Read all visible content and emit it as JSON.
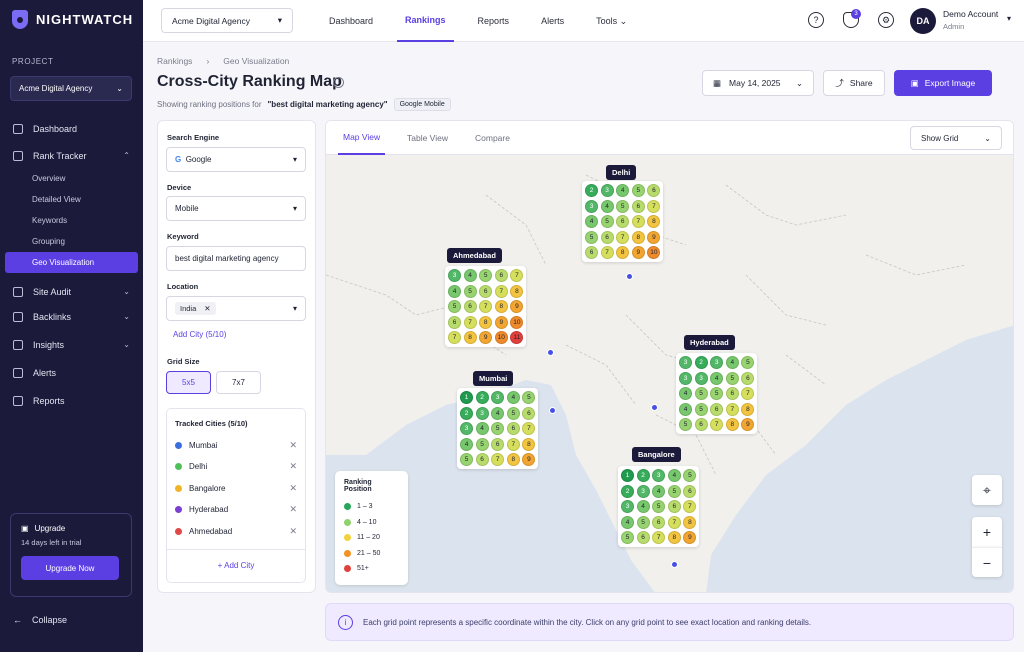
{
  "app": {
    "name": "NIGHTWATCH"
  },
  "sidebar": {
    "project_label": "PROJECT",
    "project": "Acme Digital Agency",
    "items": [
      {
        "label": "Dashboard",
        "icon": "home-icon"
      },
      {
        "label": "Rank Tracker",
        "icon": "chart-icon"
      },
      {
        "label": "Site Audit",
        "icon": "audit-icon"
      },
      {
        "label": "Backlinks",
        "icon": "link-icon"
      },
      {
        "label": "Insights",
        "icon": "insights-icon"
      },
      {
        "label": "Alerts",
        "icon": "bell-icon"
      },
      {
        "label": "Reports",
        "icon": "report-icon"
      }
    ],
    "subitems": [
      "Overview",
      "Detailed View",
      "Keywords",
      "Grouping",
      "Geo Visualization"
    ],
    "upgrade": {
      "title": "Upgrade",
      "subtitle": "14 days left in trial",
      "button": "Upgrade Now"
    },
    "collapse": "Collapse"
  },
  "topbar": {
    "agency": "Acme Digital Agency",
    "nav": [
      "Dashboard",
      "Rankings",
      "Reports",
      "Alerts",
      "Tools"
    ],
    "notifications": "3",
    "avatar": "DA",
    "account_name": "Demo Account",
    "account_role": "Admin"
  },
  "header": {
    "breadcrumb": [
      "Rankings",
      "Geo Visualization"
    ],
    "title": "Cross-City Ranking Map",
    "subtitle_prefix": "Showing ranking positions for",
    "keyword_quoted": "\"best digital marketing agency\"",
    "badge": "Google Mobile",
    "date": "May 14, 2025",
    "share": "Share",
    "export": "Export Image"
  },
  "filters": {
    "engine_label": "Search Engine",
    "engine": "Google",
    "device_label": "Device",
    "device": "Mobile",
    "keyword_label": "Keyword",
    "keyword": "best digital marketing agency",
    "location_label": "Location",
    "location": "India",
    "add_city": "Add City (5/10)",
    "grid_label": "Grid Size",
    "grid_options": [
      "5x5",
      "7x7"
    ],
    "tracked_title": "Tracked Cities (5/10)",
    "tracked": [
      {
        "name": "Mumbai",
        "color": "#3b6fe0"
      },
      {
        "name": "Delhi",
        "color": "#4fbf5a"
      },
      {
        "name": "Bangalore",
        "color": "#f0b429"
      },
      {
        "name": "Hyderabad",
        "color": "#7b3fd1"
      },
      {
        "name": "Ahmedabad",
        "color": "#e04848"
      }
    ],
    "tracked_add": "+ Add City"
  },
  "map": {
    "tabs": [
      "Map View",
      "Table View",
      "Compare"
    ],
    "show_grid": "Show Grid",
    "legend_title": "Ranking Position",
    "legend": [
      {
        "label": "1 – 3",
        "color": "#27a55a"
      },
      {
        "label": "4 – 10",
        "color": "#8fd26c"
      },
      {
        "label": "11 – 20",
        "color": "#f2d23c"
      },
      {
        "label": "21 – 50",
        "color": "#f29222"
      },
      {
        "label": "51+",
        "color": "#e0403b"
      }
    ],
    "cities": [
      {
        "name": "Delhi",
        "grid": [
          [
            2,
            3,
            4,
            5,
            6
          ],
          [
            3,
            4,
            5,
            6,
            7
          ],
          [
            4,
            5,
            6,
            7,
            8
          ],
          [
            5,
            6,
            7,
            8,
            9
          ],
          [
            6,
            7,
            8,
            9,
            10
          ]
        ]
      },
      {
        "name": "Ahmedabad",
        "grid": [
          [
            3,
            4,
            5,
            6,
            7
          ],
          [
            4,
            5,
            6,
            7,
            8
          ],
          [
            5,
            6,
            7,
            8,
            9
          ],
          [
            6,
            7,
            8,
            9,
            10
          ],
          [
            7,
            8,
            9,
            10,
            11
          ]
        ]
      },
      {
        "name": "Hyderabad",
        "grid": [
          [
            3,
            2,
            3,
            4,
            5
          ],
          [
            3,
            3,
            4,
            5,
            6
          ],
          [
            4,
            5,
            5,
            6,
            7
          ],
          [
            4,
            5,
            6,
            7,
            8
          ],
          [
            5,
            6,
            7,
            8,
            9
          ]
        ]
      },
      {
        "name": "Mumbai",
        "grid": [
          [
            1,
            2,
            3,
            4,
            5
          ],
          [
            2,
            3,
            4,
            5,
            6
          ],
          [
            3,
            4,
            5,
            6,
            7
          ],
          [
            4,
            5,
            6,
            7,
            8
          ],
          [
            5,
            6,
            7,
            8,
            9
          ]
        ]
      },
      {
        "name": "Bangalore",
        "grid": [
          [
            1,
            2,
            3,
            4,
            5
          ],
          [
            2,
            3,
            4,
            5,
            6
          ],
          [
            3,
            4,
            5,
            6,
            7
          ],
          [
            4,
            5,
            6,
            7,
            8
          ],
          [
            5,
            6,
            7,
            8,
            9
          ]
        ]
      }
    ]
  },
  "note": "Each grid point represents a specific coordinate within the city. Click on any grid point to see exact location and ranking details."
}
